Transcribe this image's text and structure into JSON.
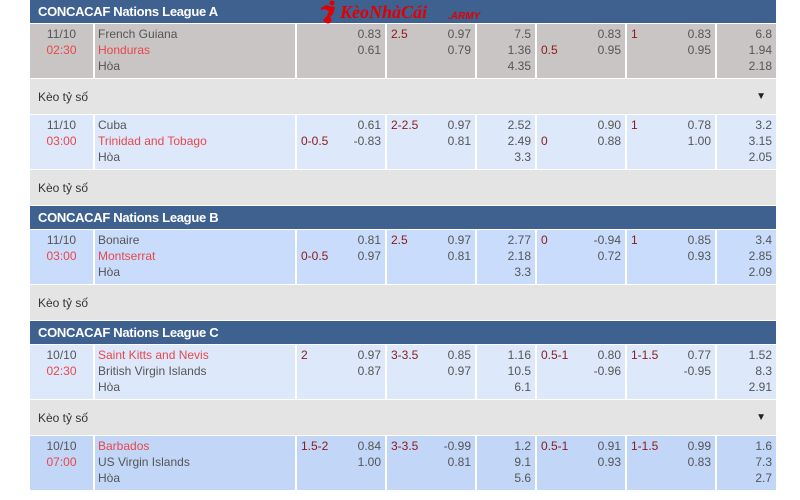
{
  "logo": {
    "text": "KèoNhàCái",
    "suffix": ".ARMY"
  },
  "keo_label": "Kèo tỷ số",
  "colors": {
    "header": "#3f6190",
    "keo_row": "#e4e4e4",
    "fav_team": "#e8474a",
    "line": "#8b1a1a"
  },
  "sections": [
    {
      "league": "CONCACAF Nations League A",
      "matches": [
        {
          "date": "11/10",
          "time": "02:30",
          "home": "French Guiana",
          "away": "Honduras",
          "draw": "Hòa",
          "fav": 2,
          "bg": "#c9c5c5",
          "hdp": {
            "label": "",
            "line": 2,
            "odds": [
              "0.83",
              "0.61"
            ]
          },
          "ou": {
            "label": "2.5",
            "odds": [
              "0.97",
              "0.79"
            ]
          },
          "x12": [
            "7.5",
            "1.36",
            "4.35"
          ],
          "h1hdp": {
            "label": "0.5",
            "line": 2,
            "odds": [
              "0.83",
              "0.95"
            ]
          },
          "h1ou": {
            "label": "1",
            "odds": [
              "0.83",
              "0.95"
            ]
          },
          "h1x12": [
            "6.8",
            "1.94",
            "2.18"
          ],
          "keo_expand": true
        },
        {
          "date": "11/10",
          "time": "03:00",
          "home": "Cuba",
          "away": "Trinidad and Tobago",
          "draw": "Hòa",
          "fav": 2,
          "bg": "#dde9fb",
          "hdp": {
            "label": "0-0.5",
            "line": 2,
            "odds": [
              "0.61",
              "-0.83"
            ]
          },
          "ou": {
            "label": "2-2.5",
            "odds": [
              "0.97",
              "0.81"
            ]
          },
          "x12": [
            "2.52",
            "2.49",
            "3.3"
          ],
          "h1hdp": {
            "label": "0",
            "line": 2,
            "odds": [
              "0.90",
              "0.88"
            ]
          },
          "h1ou": {
            "label": "1",
            "odds": [
              "0.78",
              "1.00"
            ]
          },
          "h1x12": [
            "3.2",
            "3.15",
            "2.05"
          ],
          "keo_expand": false
        }
      ]
    },
    {
      "league": "CONCACAF Nations League B",
      "matches": [
        {
          "date": "11/10",
          "time": "03:00",
          "home": "Bonaire",
          "away": "Montserrat",
          "draw": "Hòa",
          "fav": 2,
          "bg": "#c9dcfb",
          "hdp": {
            "label": "0-0.5",
            "line": 2,
            "odds": [
              "0.81",
              "0.97"
            ]
          },
          "ou": {
            "label": "2.5",
            "odds": [
              "0.97",
              "0.81"
            ]
          },
          "x12": [
            "2.77",
            "2.18",
            "3.3"
          ],
          "h1hdp": {
            "label": "0",
            "line": 1,
            "odds": [
              "-0.94",
              "0.72"
            ]
          },
          "h1ou": {
            "label": "1",
            "odds": [
              "0.85",
              "0.93"
            ]
          },
          "h1x12": [
            "3.4",
            "2.85",
            "2.09"
          ],
          "keo_expand": false
        }
      ]
    },
    {
      "league": "CONCACAF Nations League C",
      "matches": [
        {
          "date": "10/10",
          "time": "02:30",
          "home": "Saint Kitts and Nevis",
          "away": "British Virgin Islands",
          "draw": "Hòa",
          "fav": 1,
          "bg": "#dde9fb",
          "hdp": {
            "label": "2",
            "line": 1,
            "odds": [
              "0.97",
              "0.87"
            ]
          },
          "ou": {
            "label": "3-3.5",
            "odds": [
              "0.85",
              "0.97"
            ]
          },
          "x12": [
            "1.16",
            "10.5",
            "6.1"
          ],
          "h1hdp": {
            "label": "0.5-1",
            "line": 1,
            "odds": [
              "0.80",
              "-0.96"
            ]
          },
          "h1ou": {
            "label": "1-1.5",
            "odds": [
              "0.77",
              "-0.95"
            ]
          },
          "h1x12": [
            "1.52",
            "8.3",
            "2.91"
          ],
          "keo_expand": true
        },
        {
          "date": "10/10",
          "time": "07:00",
          "home": "Barbados",
          "away": "US Virgin Islands",
          "draw": "Hòa",
          "fav": 1,
          "bg": "#c2d6f8",
          "hdp": {
            "label": "1.5-2",
            "line": 1,
            "odds": [
              "0.84",
              "1.00"
            ]
          },
          "ou": {
            "label": "3-3.5",
            "odds": [
              "-0.99",
              "0.81"
            ]
          },
          "x12": [
            "1.2",
            "9.1",
            "5.6"
          ],
          "h1hdp": {
            "label": "0.5-1",
            "line": 1,
            "odds": [
              "0.91",
              "0.93"
            ]
          },
          "h1ou": {
            "label": "1-1.5",
            "odds": [
              "0.99",
              "0.83"
            ]
          },
          "h1x12": [
            "1.6",
            "7.3",
            "2.7"
          ],
          "keo_expand": null
        }
      ]
    }
  ]
}
